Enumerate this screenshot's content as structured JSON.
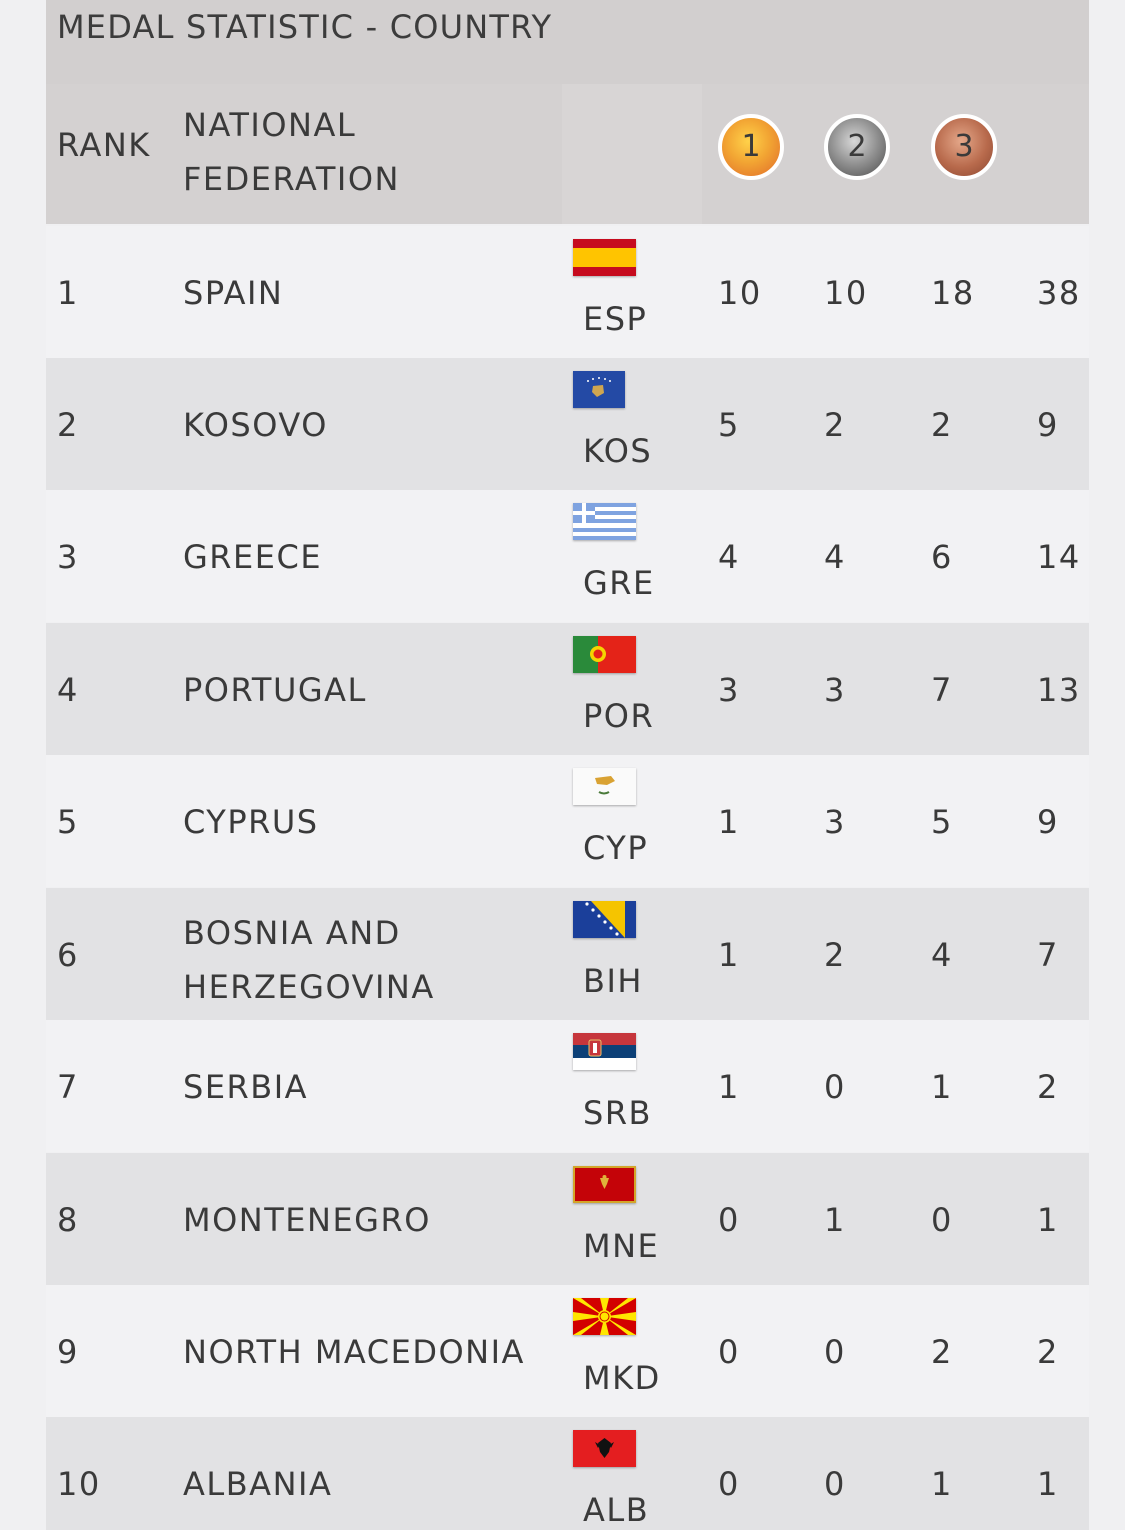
{
  "title": "MEDAL STATISTIC - COUNTRY",
  "header": {
    "rank": "RANK",
    "federation_line1": "NATIONAL",
    "federation_line2": "FEDERATION",
    "gold": "1",
    "silver": "2",
    "bronze": "3"
  },
  "rows": [
    {
      "rank": "1",
      "name": "SPAIN",
      "name2": "",
      "code": "ESP",
      "gold": "10",
      "silver": "10",
      "bronze": "18",
      "total": "38",
      "flag": "spain-flag"
    },
    {
      "rank": "2",
      "name": "KOSOVO",
      "name2": "",
      "code": "KOS",
      "gold": "5",
      "silver": "2",
      "bronze": "2",
      "total": "9",
      "flag": "kosovo-flag"
    },
    {
      "rank": "3",
      "name": "GREECE",
      "name2": "",
      "code": "GRE",
      "gold": "4",
      "silver": "4",
      "bronze": "6",
      "total": "14",
      "flag": "greece-flag"
    },
    {
      "rank": "4",
      "name": "PORTUGAL",
      "name2": "",
      "code": "POR",
      "gold": "3",
      "silver": "3",
      "bronze": "7",
      "total": "13",
      "flag": "portugal-flag"
    },
    {
      "rank": "5",
      "name": "CYPRUS",
      "name2": "",
      "code": "CYP",
      "gold": "1",
      "silver": "3",
      "bronze": "5",
      "total": "9",
      "flag": "cyprus-flag"
    },
    {
      "rank": "6",
      "name": "BOSNIA AND",
      "name2": "HERZEGOVINA",
      "code": "BIH",
      "gold": "1",
      "silver": "2",
      "bronze": "4",
      "total": "7",
      "flag": "bosnia-flag"
    },
    {
      "rank": "7",
      "name": "SERBIA",
      "name2": "",
      "code": "SRB",
      "gold": "1",
      "silver": "0",
      "bronze": "1",
      "total": "2",
      "flag": "serbia-flag"
    },
    {
      "rank": "8",
      "name": "MONTENEGRO",
      "name2": "",
      "code": "MNE",
      "gold": "0",
      "silver": "1",
      "bronze": "0",
      "total": "1",
      "flag": "montenegro-flag"
    },
    {
      "rank": "9",
      "name": "NORTH MACEDONIA",
      "name2": "",
      "code": "MKD",
      "gold": "0",
      "silver": "0",
      "bronze": "2",
      "total": "2",
      "flag": "north-macedonia-flag"
    },
    {
      "rank": "10",
      "name": "ALBANIA",
      "name2": "",
      "code": "ALB",
      "gold": "0",
      "silver": "0",
      "bronze": "1",
      "total": "1",
      "flag": "albania-flag"
    }
  ]
}
